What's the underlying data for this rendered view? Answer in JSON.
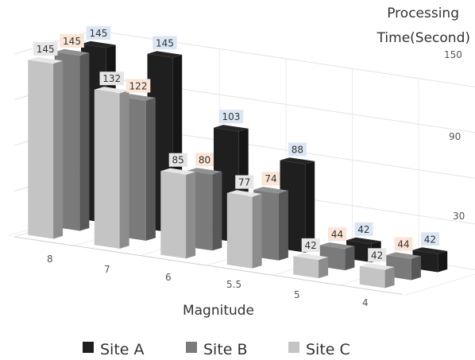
{
  "chart_data": {
    "type": "bar",
    "subtype": "3d-clustered-column",
    "categories": [
      "8",
      "7",
      "6",
      "5.5",
      "5",
      "4"
    ],
    "series": [
      {
        "name": "Site A",
        "values": [
          145,
          145,
          103,
          88,
          42,
          42
        ],
        "color": "#1f1f1f",
        "label_bg": "#dbe6f5"
      },
      {
        "name": "Site B",
        "values": [
          145,
          122,
          80,
          74,
          44,
          44
        ],
        "color": "#7a7a7a",
        "label_bg": "#fbe5d6"
      },
      {
        "name": "Site C",
        "values": [
          145,
          132,
          85,
          77,
          42,
          42
        ],
        "color": "#c4c4c4",
        "label_bg": "#e6e6e6"
      }
    ],
    "xlabel": "Magnitude",
    "ylabel": "Processing\nTime(Second)",
    "y_ticks": [
      "30",
      "90",
      "150"
    ],
    "ylim": [
      30,
      150
    ],
    "grid": true,
    "legend_position": "bottom"
  }
}
